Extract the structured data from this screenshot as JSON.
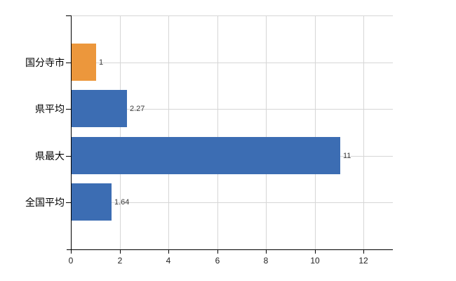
{
  "chart_data": {
    "type": "bar",
    "orientation": "horizontal",
    "title": "",
    "xlabel": "",
    "ylabel": "",
    "categories": [
      "国分寺市",
      "県平均",
      "県最大",
      "全国平均"
    ],
    "values": [
      1,
      2.27,
      11,
      1.64
    ],
    "value_labels": [
      "1",
      "2.27",
      "11",
      "1.64"
    ],
    "bar_colors": [
      "#ec973c",
      "#3c6db3",
      "#3c6db3",
      "#3c6db3"
    ],
    "x_ticks": [
      0,
      2,
      4,
      6,
      8,
      10,
      12
    ],
    "x_tick_labels": [
      "0",
      "2",
      "4",
      "6",
      "8",
      "10",
      "12"
    ],
    "xlim": [
      0,
      13.2
    ],
    "grid": true,
    "legend": "none",
    "colors": {
      "highlight_orange": "#ec973c",
      "series_blue": "#3c6db3",
      "gridline": "#d6d6d6",
      "axis": "#000000",
      "background": "#ffffff"
    }
  }
}
